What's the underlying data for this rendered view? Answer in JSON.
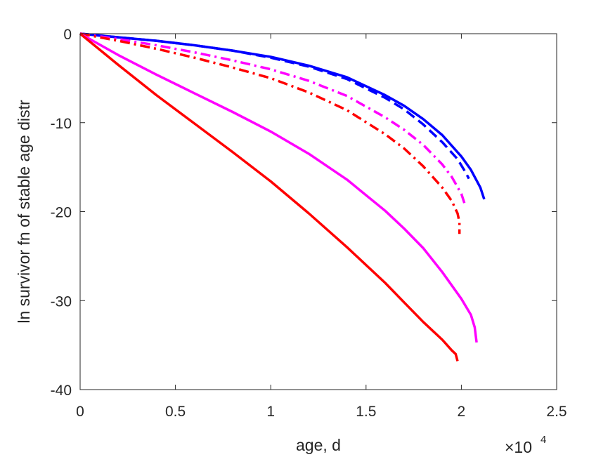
{
  "chart_data": {
    "type": "line",
    "title": "",
    "xlabel": "age, d",
    "ylabel": "ln survivor fn of stable age distr",
    "xlim": [
      0,
      25000
    ],
    "ylim": [
      -40,
      0
    ],
    "x_exponent_label": {
      "base": "×10",
      "exponent": "4"
    },
    "x_ticks": [
      0,
      5000,
      10000,
      15000,
      20000,
      25000
    ],
    "x_tick_labels": [
      "0",
      "0.5",
      "1",
      "1.5",
      "2",
      "2.5"
    ],
    "y_ticks": [
      0,
      -10,
      -20,
      -30,
      -40
    ],
    "y_tick_labels": [
      "0",
      "-10",
      "-20",
      "-30",
      "-40"
    ],
    "grid": false,
    "colors": {
      "blue": "#0000ff",
      "magenta": "#ff00ff",
      "red": "#ff0000",
      "axis": "#262626"
    },
    "series": [
      {
        "color": "#0000ff",
        "style": "solid",
        "x": [
          0,
          2000,
          4000,
          6000,
          8000,
          10000,
          12000,
          14000,
          16000,
          17000,
          18000,
          19000,
          20000,
          20500,
          21000,
          21200
        ],
        "y": [
          0,
          -0.4,
          -0.8,
          -1.3,
          -1.9,
          -2.6,
          -3.6,
          -4.9,
          -6.9,
          -8.1,
          -9.6,
          -11.4,
          -13.8,
          -15.3,
          -17.3,
          -18.6
        ]
      },
      {
        "color": "#0000ff",
        "style": "dashed",
        "x": [
          0,
          2000,
          4000,
          6000,
          8000,
          10000,
          12000,
          14000,
          16000,
          17000,
          18000,
          19000,
          19800,
          20200,
          20400
        ],
        "y": [
          0,
          -0.4,
          -0.8,
          -1.3,
          -1.9,
          -2.7,
          -3.7,
          -5.1,
          -7.2,
          -8.5,
          -10.2,
          -12.2,
          -14.1,
          -15.5,
          -16.3
        ]
      },
      {
        "color": "#ff00ff",
        "style": "dashdot",
        "x": [
          0,
          2000,
          4000,
          6000,
          8000,
          10000,
          12000,
          14000,
          16000,
          17000,
          18000,
          19000,
          19500,
          20000,
          20200
        ],
        "y": [
          0,
          -0.6,
          -1.3,
          -2.1,
          -3.0,
          -4.0,
          -5.3,
          -7.0,
          -9.4,
          -10.8,
          -12.5,
          -14.7,
          -16.1,
          -18.0,
          -19.3
        ]
      },
      {
        "color": "#ff0000",
        "style": "dashdot",
        "x": [
          0,
          2000,
          4000,
          6000,
          8000,
          10000,
          12000,
          14000,
          16000,
          17000,
          18000,
          19000,
          19500,
          19800,
          19900,
          19900
        ],
        "y": [
          0,
          -0.8,
          -1.7,
          -2.7,
          -3.8,
          -5.0,
          -6.6,
          -8.6,
          -11.3,
          -12.9,
          -14.9,
          -17.3,
          -18.8,
          -20.2,
          -21.2,
          -22.5
        ]
      },
      {
        "color": "#ff00ff",
        "style": "solid",
        "x": [
          0,
          2000,
          4000,
          6000,
          8000,
          10000,
          12000,
          14000,
          16000,
          17000,
          18000,
          19000,
          20000,
          20500,
          20700,
          20800
        ],
        "y": [
          0,
          -2.4,
          -4.6,
          -6.7,
          -8.8,
          -11.0,
          -13.5,
          -16.4,
          -19.9,
          -21.9,
          -24.1,
          -26.8,
          -29.8,
          -31.6,
          -33.0,
          -34.7
        ]
      },
      {
        "color": "#ff0000",
        "style": "solid",
        "x": [
          0,
          2000,
          4000,
          6000,
          8000,
          10000,
          12000,
          14000,
          16000,
          17000,
          18000,
          19000,
          19500,
          19700,
          19800
        ],
        "y": [
          0,
          -3.5,
          -6.9,
          -10.1,
          -13.3,
          -16.6,
          -20.2,
          -24.0,
          -28.0,
          -30.2,
          -32.4,
          -34.4,
          -35.6,
          -36.0,
          -36.8
        ]
      }
    ]
  }
}
